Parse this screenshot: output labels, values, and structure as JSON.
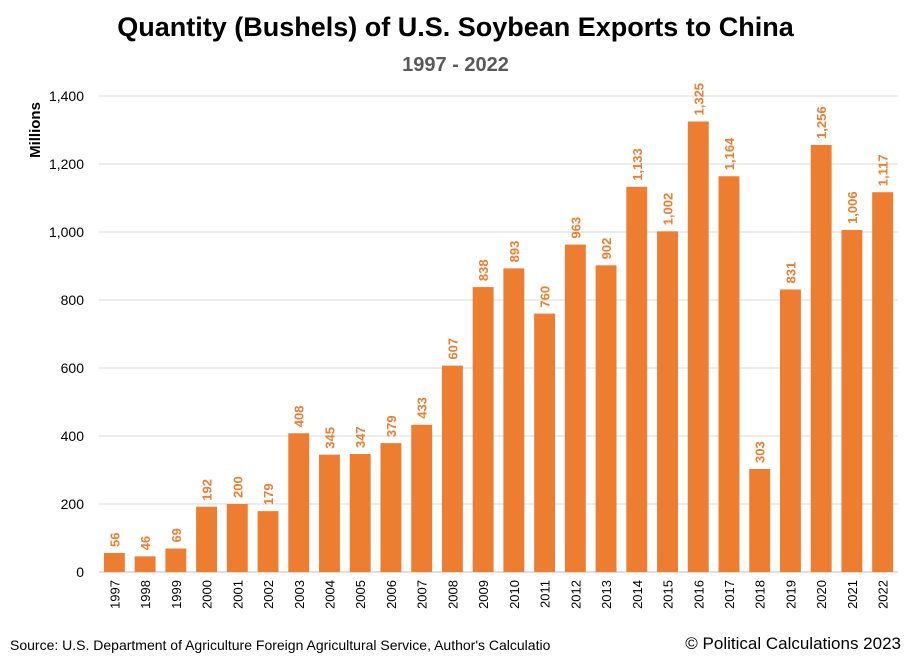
{
  "chart_data": {
    "type": "bar",
    "title": "Quantity (Bushels) of U.S. Soybean Exports to China",
    "subtitle": "1997 - 2022",
    "xlabel": "",
    "ylabel": "Millions",
    "ylim": [
      0,
      1400
    ],
    "yticks": [
      "0",
      "200",
      "400",
      "600",
      "800",
      "1,000",
      "1,200",
      "1,400"
    ],
    "grid": true,
    "bar_color": "#ED7D31",
    "categories": [
      "1997",
      "1998",
      "1999",
      "2000",
      "2001",
      "2002",
      "2003",
      "2004",
      "2005",
      "2006",
      "2007",
      "2008",
      "2009",
      "2010",
      "2011",
      "2012",
      "2013",
      "2014",
      "2015",
      "2016",
      "2017",
      "2018",
      "2019",
      "2020",
      "2021",
      "2022"
    ],
    "values": [
      56,
      46,
      69,
      192,
      200,
      179,
      408,
      345,
      347,
      379,
      433,
      607,
      838,
      893,
      760,
      963,
      902,
      1133,
      1002,
      1325,
      1164,
      303,
      831,
      1256,
      1006,
      1117
    ],
    "data_labels": [
      "56",
      "46",
      "69",
      "192",
      "200",
      "179",
      "408",
      "345",
      "347",
      "379",
      "433",
      "607",
      "838",
      "893",
      "760",
      "963",
      "902",
      "1,133",
      "1,002",
      "1,325",
      "1,164",
      "303",
      "831",
      "1,256",
      "1,006",
      "1,117"
    ]
  },
  "footer": {
    "source": "Source: U.S. Department of Agriculture Foreign Agricultural Service, Author's Calculatio",
    "credit": "© Political Calculations 2023"
  }
}
